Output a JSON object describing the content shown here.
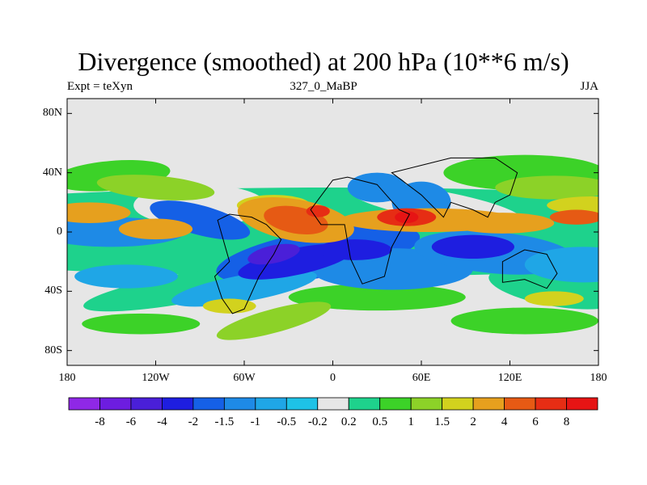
{
  "title": "Divergence (smoothed) at 200 hPa (10**6 m/s)",
  "subtitle_left": "Expt = teXyn",
  "subtitle_center": "327_0_MaBP",
  "subtitle_right": "JJA",
  "chart_data": {
    "type": "heatmap",
    "title": "Divergence (smoothed) at 200 hPa (10**6 m/s)",
    "x_ticks": [
      "180",
      "120W",
      "60W",
      "0",
      "60E",
      "120E",
      "180"
    ],
    "y_ticks": [
      "80N",
      "40N",
      "0",
      "40S",
      "80S"
    ],
    "xlim": [
      -180,
      180
    ],
    "ylim": [
      -90,
      90
    ],
    "colorbar": {
      "labels": [
        "-8",
        "-6",
        "-4",
        "-2",
        "-1.5",
        "-1",
        "-0.5",
        "-0.2",
        "0.2",
        "0.5",
        "1",
        "1.5",
        "2",
        "4",
        "6",
        "8"
      ],
      "colors": [
        "#8f28e6",
        "#6d1de0",
        "#4a1fd8",
        "#1e1ee0",
        "#1560e6",
        "#1e8ae6",
        "#1fa6e6",
        "#1ec2e6",
        "#e6e6e6",
        "#1ed28c",
        "#3cd228",
        "#8cd228",
        "#d2d21e",
        "#e6a01e",
        "#e65a14",
        "#e62d14",
        "#e61414"
      ]
    },
    "features": [
      {
        "type": "divergence",
        "sign": "positive",
        "value_range": [
          2,
          4
        ],
        "lon": -165,
        "lat": 12
      },
      {
        "type": "divergence",
        "sign": "positive",
        "value_range": [
          4,
          6
        ],
        "lon": -20,
        "lat": 8
      },
      {
        "type": "divergence",
        "sign": "positive",
        "value_range": [
          6,
          8
        ],
        "lon": 50,
        "lat": 10
      },
      {
        "type": "divergence",
        "sign": "positive",
        "value_range": [
          2,
          4
        ],
        "lon": 120,
        "lat": 8
      },
      {
        "type": "convergence",
        "sign": "negative",
        "value_range": [
          -8,
          -4
        ],
        "lon": -30,
        "lat": -20
      },
      {
        "type": "convergence",
        "sign": "negative",
        "value_range": [
          -4,
          -2
        ],
        "lon": 80,
        "lat": -15
      },
      {
        "type": "convergence",
        "sign": "negative",
        "value_range": [
          -2,
          -1
        ],
        "lon": -170,
        "lat": 0
      }
    ]
  }
}
